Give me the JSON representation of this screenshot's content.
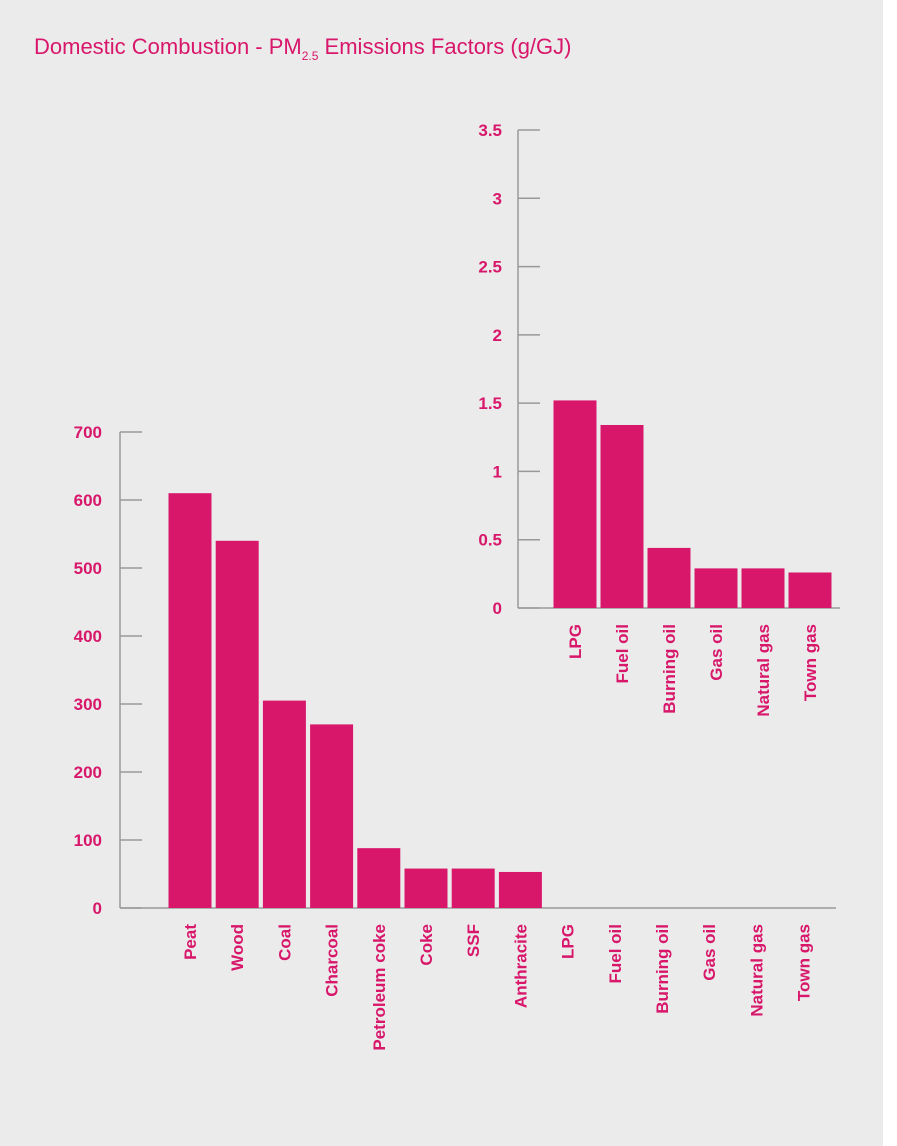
{
  "title": {
    "prefix": "Domestic Combustion - PM",
    "subscript": "2.5",
    "suffix": " Emissions Factors (g/GJ)"
  },
  "colors": {
    "bar": "#d8176b",
    "text": "#d8176b",
    "axis": "#999999",
    "background": "#ebebeb"
  },
  "chart_data": [
    {
      "type": "bar",
      "categories": [
        "Peat",
        "Wood",
        "Coal",
        "Charcoal",
        "Petroleum coke",
        "Coke",
        "SSF",
        "Anthracite",
        "LPG",
        "Fuel oil",
        "Burning oil",
        "Gas oil",
        "Natural gas",
        "Town gas"
      ],
      "values": [
        610,
        540,
        305,
        270,
        88,
        58,
        58,
        53,
        1.52,
        1.34,
        0.44,
        0.29,
        0.29,
        0.26
      ],
      "ylim": [
        0,
        700
      ],
      "yticks": [
        "0",
        "100",
        "200",
        "300",
        "400",
        "500",
        "600",
        "700"
      ],
      "xlabel": "",
      "ylabel": "",
      "grid": false
    },
    {
      "type": "bar",
      "categories": [
        "LPG",
        "Fuel oil",
        "Burning oil",
        "Gas oil",
        "Natural gas",
        "Town gas"
      ],
      "values": [
        1.52,
        1.34,
        0.44,
        0.29,
        0.29,
        0.26
      ],
      "ylim": [
        0,
        3.5
      ],
      "yticks": [
        "0",
        "0.5",
        "1",
        "1.5",
        "2",
        "2.5",
        "3",
        "3.5"
      ],
      "xlabel": "",
      "ylabel": "",
      "grid": false
    }
  ]
}
